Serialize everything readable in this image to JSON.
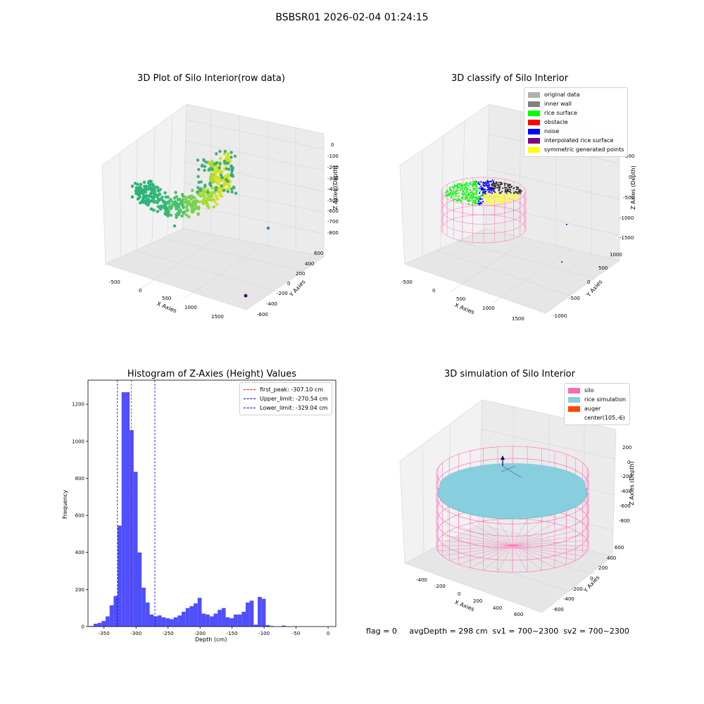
{
  "suptitle": "BSBSR01 2026-02-04 01:24:15",
  "footer": "flag = 0     avgDepth = 298 cm  sv1 = 700~2300  sv2 = 700~2300",
  "colors": {
    "hist_bar": "#4f4ffb",
    "peak_line": "#ff0000",
    "limit_line": "#0000cc",
    "silo_wire": "#ff69b4",
    "rice_sim": "#87cedf",
    "auger": "#ff4500"
  },
  "chart_data": [
    {
      "type": "scatter",
      "title": "3D Plot of Silo Interior(row data)",
      "projection": "3d",
      "xlabel": "X Axies",
      "ylabel": "Y Axies",
      "zlabel": "Z Axies (Depth)",
      "xticks": [
        "-500",
        "0",
        "500",
        "1000",
        "1500"
      ],
      "yticks": [
        "-600",
        "-400",
        "-200",
        "0",
        "200",
        "400",
        "600"
      ],
      "zticks": [
        "0",
        "-100",
        "-200",
        "-300",
        "-400",
        "-500",
        "-600",
        "-700",
        "-800"
      ],
      "xlim": [
        -700,
        1800
      ],
      "ylim": [
        -700,
        700
      ],
      "zlim": [
        -850,
        50
      ],
      "colormap": "viridis"
    },
    {
      "type": "scatter",
      "title": "3D classify of Silo Interior",
      "projection": "3d",
      "xlabel": "X Axies",
      "ylabel": "Y Axies",
      "zlabel": "Z Axies (Depth)",
      "xticks": [
        "-500",
        "0",
        "500",
        "1000",
        "1500"
      ],
      "yticks": [
        "-1000",
        "-500",
        "0",
        "500",
        "1000"
      ],
      "zticks": [
        "500",
        "0",
        "-500",
        "-1000",
        "-1500"
      ],
      "legend_position": "top-right",
      "legend": [
        {
          "label": "original data",
          "color": "#b0b0b0"
        },
        {
          "label": "inner wall",
          "color": "#808080"
        },
        {
          "label": "rice surface",
          "color": "#00ff00"
        },
        {
          "label": "obstacle",
          "color": "#ff0000"
        },
        {
          "label": "noise",
          "color": "#0000ff"
        },
        {
          "label": "interpolated rice surface",
          "color": "#800080"
        },
        {
          "label": "symmetric generated points",
          "color": "#ffff00"
        }
      ]
    },
    {
      "type": "bar",
      "title": "Histogram of Z-Axies (Height) Values",
      "xlabel": "Depth (cm)",
      "ylabel": "Frequency",
      "xlim": [
        -375,
        12
      ],
      "ylim": [
        0,
        1330
      ],
      "xticks": [
        -350,
        -300,
        -250,
        -200,
        -150,
        -100,
        -50,
        0
      ],
      "yticks": [
        0,
        200,
        400,
        600,
        800,
        1000,
        1200
      ],
      "bin_start": -372.5,
      "bin_width": 6.25,
      "values": [
        3,
        15,
        20,
        30,
        55,
        115,
        165,
        545,
        1265,
        1265,
        1060,
        835,
        400,
        210,
        130,
        65,
        55,
        60,
        50,
        45,
        40,
        50,
        60,
        80,
        100,
        110,
        125,
        155,
        70,
        65,
        55,
        70,
        90,
        100,
        50,
        45,
        65,
        65,
        80,
        130,
        140,
        10,
        160,
        150,
        8,
        3,
        0,
        0,
        5,
        0
      ],
      "vlines": [
        {
          "label": "first_peak: -307.10 cm",
          "x": -307.1,
          "color": "#ff0000"
        },
        {
          "label": "Upper_limit: -270.54 cm",
          "x": -270.54,
          "color": "#0000cc"
        },
        {
          "label": "Lower_limit: -329.04 cm",
          "x": -329.04,
          "color": "#0000cc"
        }
      ],
      "legend_position": "top-right"
    },
    {
      "type": "surface",
      "title": "3D simulation of Silo Interior",
      "projection": "3d",
      "xlabel": "X Axies",
      "ylabel": "Y Axies",
      "zlabel": "Z Axies (Depth)",
      "xticks": [
        "-400",
        "-200",
        "0",
        "200",
        "400",
        "600"
      ],
      "yticks": [
        "-600",
        "-400",
        "-200",
        "0",
        "200",
        "400",
        "600"
      ],
      "zticks": [
        "200",
        "0",
        "-200",
        "-400",
        "-600",
        "-800"
      ],
      "legend_position": "top-right",
      "legend": [
        {
          "label": "silo",
          "color": "#ff69b4"
        },
        {
          "label": "rice simulation",
          "color": "#87cedf"
        },
        {
          "label": "auger",
          "color": "#ff4500"
        },
        {
          "label": "center(105,-6)",
          "color": ""
        }
      ]
    }
  ]
}
